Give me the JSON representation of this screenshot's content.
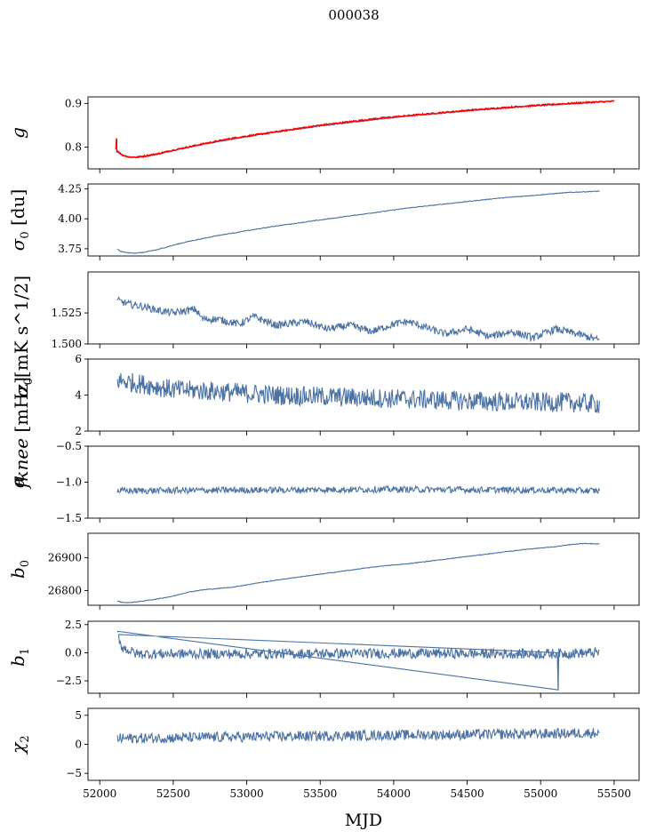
{
  "title": "000038",
  "colors": {
    "series": "#4c72a4",
    "overlay": "#ff0000",
    "axis": "#000000"
  },
  "xaxis": {
    "label": "MJD",
    "range": [
      51920,
      55670
    ],
    "ticks": [
      52000,
      52500,
      53000,
      53500,
      54000,
      54500,
      55000,
      55500
    ],
    "tick_labels": [
      "52000",
      "52500",
      "53000",
      "53500",
      "54000",
      "54500",
      "55000",
      "55500"
    ]
  },
  "chart_data": [
    {
      "type": "line",
      "ylabel": "g",
      "ylim": [
        0.75,
        0.915
      ],
      "yticks": [
        0.8,
        0.9
      ],
      "ytick_labels": [
        "0.8",
        "0.9"
      ],
      "series": [
        {
          "color": "#4c72a4",
          "x": [
            52110,
            52150,
            52200,
            52250,
            52300,
            52400,
            52500,
            52700,
            52900,
            53100,
            53300,
            53500,
            53700,
            53900,
            54100,
            54300,
            54500,
            54700,
            54900,
            55100,
            55300,
            55400
          ],
          "y": [
            0.79,
            0.782,
            0.777,
            0.776,
            0.778,
            0.784,
            0.792,
            0.806,
            0.818,
            0.829,
            0.839,
            0.848,
            0.856,
            0.864,
            0.871,
            0.877,
            0.883,
            0.888,
            0.893,
            0.897,
            0.901,
            0.903
          ],
          "noise": 0.001
        },
        {
          "color": "#ff0000",
          "x": [
            52110,
            52150,
            52200,
            52250,
            52300,
            52400,
            52500,
            52700,
            52900,
            53100,
            53300,
            53500,
            53700,
            53900,
            54100,
            54300,
            54500,
            54700,
            54900,
            55100,
            55300,
            55500
          ],
          "y": [
            0.795,
            0.782,
            0.777,
            0.777,
            0.779,
            0.785,
            0.793,
            0.807,
            0.82,
            0.83,
            0.84,
            0.85,
            0.858,
            0.866,
            0.872,
            0.878,
            0.884,
            0.889,
            0.894,
            0.898,
            0.902,
            0.905
          ],
          "noise": 0.0015,
          "spike": [
            52115,
            0.795,
            0.82
          ]
        }
      ]
    },
    {
      "type": "line",
      "ylabel": "σ0 [du]",
      "ylim": [
        3.69,
        4.29
      ],
      "yticks": [
        3.75,
        4.0,
        4.25
      ],
      "ytick_labels": [
        "3.75",
        "4.00",
        "4.25"
      ],
      "series": [
        {
          "color": "#4c72a4",
          "x": [
            52120,
            52150,
            52200,
            52250,
            52300,
            52400,
            52500,
            52600,
            52800,
            53000,
            53200,
            53500,
            53800,
            54100,
            54400,
            54700,
            55000,
            55200,
            55400
          ],
          "y": [
            3.745,
            3.725,
            3.715,
            3.715,
            3.72,
            3.745,
            3.78,
            3.81,
            3.86,
            3.9,
            3.94,
            3.99,
            4.04,
            4.09,
            4.13,
            4.17,
            4.2,
            4.22,
            4.23
          ],
          "noise": 0.003
        }
      ]
    },
    {
      "type": "line",
      "ylabel": "σ0[mK s^1/2]",
      "ylim": [
        1.5,
        1.558
      ],
      "yticks": [
        1.5,
        1.525
      ],
      "ytick_labels": [
        "1.500",
        "1.525"
      ],
      "series": [
        {
          "color": "#4c72a4",
          "x": [
            52120,
            52200,
            52300,
            52400,
            52500,
            52650,
            52700,
            52800,
            52950,
            53050,
            53200,
            53400,
            53550,
            53700,
            53850,
            54000,
            54100,
            54200,
            54350,
            54500,
            54650,
            54800,
            54950,
            55100,
            55250,
            55400
          ],
          "y": [
            1.535,
            1.532,
            1.53,
            1.527,
            1.525,
            1.528,
            1.52,
            1.52,
            1.516,
            1.522,
            1.515,
            1.518,
            1.512,
            1.515,
            1.51,
            1.516,
            1.518,
            1.514,
            1.508,
            1.512,
            1.506,
            1.51,
            1.505,
            1.512,
            1.508,
            1.503
          ],
          "noise": 0.003
        }
      ]
    },
    {
      "type": "line",
      "ylabel": "fknee [mHz]",
      "ylim": [
        2,
        6
      ],
      "yticks": [
        2,
        4,
        6
      ],
      "ytick_labels": [
        "2",
        "4",
        "6"
      ],
      "series": [
        {
          "color": "#4c72a4",
          "x": [
            52120,
            52300,
            52500,
            52800,
            53200,
            53600,
            54000,
            54400,
            54800,
            55200,
            55400
          ],
          "y": [
            4.8,
            4.6,
            4.3,
            4.2,
            4.0,
            3.9,
            3.8,
            3.7,
            3.6,
            3.6,
            3.5
          ],
          "noise": 0.55
        }
      ]
    },
    {
      "type": "line",
      "ylabel": "α",
      "ylim": [
        -1.5,
        -0.5
      ],
      "yticks": [
        -1.5,
        -1.0,
        -0.5
      ],
      "ytick_labels": [
        "−1.5",
        "−1.0",
        "−0.5"
      ],
      "series": [
        {
          "color": "#4c72a4",
          "x": [
            52120,
            53000,
            54000,
            55000,
            55400
          ],
          "y": [
            -1.12,
            -1.11,
            -1.1,
            -1.11,
            -1.12
          ],
          "noise": 0.045
        }
      ]
    },
    {
      "type": "line",
      "ylabel": "b0",
      "ylim": [
        26755,
        26975
      ],
      "yticks": [
        26800,
        26900
      ],
      "ytick_labels": [
        "26800",
        "26900"
      ],
      "series": [
        {
          "color": "#4c72a4",
          "x": [
            52120,
            52150,
            52200,
            52300,
            52400,
            52500,
            52600,
            52700,
            52900,
            53100,
            53300,
            53500,
            53700,
            53900,
            54100,
            54300,
            54500,
            54700,
            54900,
            55100,
            55200,
            55300,
            55400
          ],
          "y": [
            26768,
            26764,
            26763,
            26768,
            26775,
            26783,
            26795,
            26802,
            26810,
            26825,
            26838,
            26850,
            26862,
            26874,
            26882,
            26893,
            26904,
            26915,
            26926,
            26934,
            26940,
            26944,
            26942
          ],
          "noise": 1.0
        }
      ]
    },
    {
      "type": "line",
      "ylabel": "b1",
      "ylim": [
        -3.6,
        2.8
      ],
      "yticks": [
        -2.5,
        0.0,
        2.5
      ],
      "ytick_labels": [
        "−2.5",
        "0.0",
        "2.5"
      ],
      "series": [
        {
          "color": "#4c72a4",
          "x": [
            52120,
            52150,
            52250,
            53000,
            54000,
            55000,
            55400
          ],
          "y": [
            1.8,
            0.5,
            -0.1,
            -0.1,
            -0.05,
            -0.1,
            0.0
          ],
          "noise": 0.45,
          "spike": [
            55120,
            0.0,
            -3.3
          ]
        }
      ]
    },
    {
      "type": "line",
      "ylabel": "χ2",
      "ylim": [
        -6.2,
        6.2
      ],
      "yticks": [
        -5,
        0,
        5
      ],
      "ytick_labels": [
        "−5",
        "0",
        "5"
      ],
      "series": [
        {
          "color": "#4c72a4",
          "x": [
            52120,
            53000,
            54000,
            55000,
            55400
          ],
          "y": [
            1.0,
            1.3,
            1.6,
            1.8,
            2.0
          ],
          "noise": 0.9
        }
      ]
    }
  ]
}
